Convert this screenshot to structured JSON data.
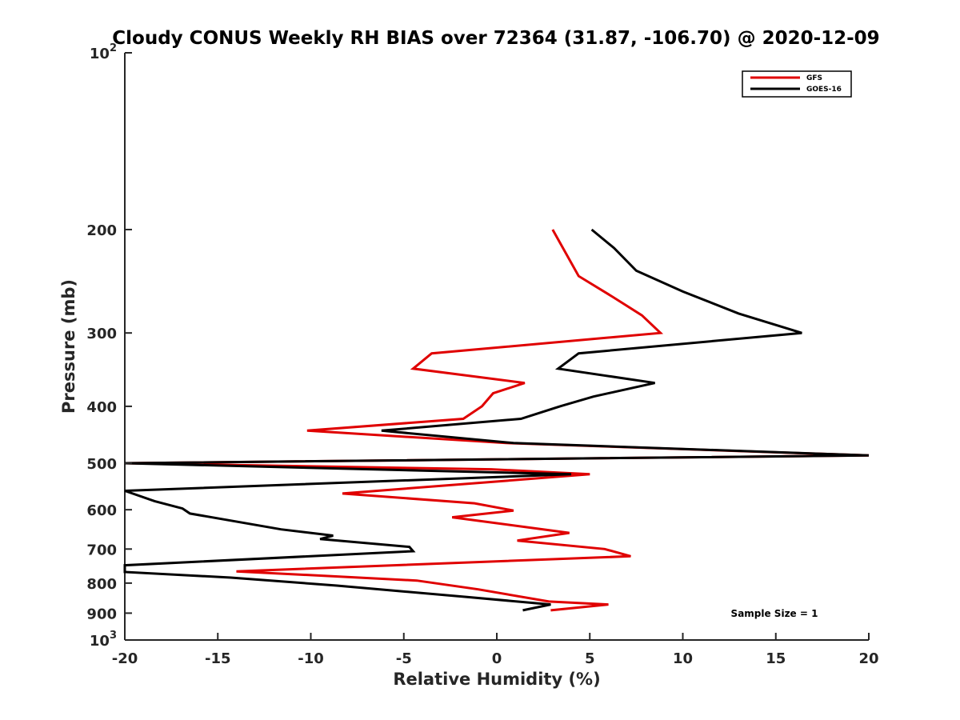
{
  "chart_data": {
    "type": "line",
    "title": "Cloudy CONUS Weekly RH BIAS over 72364 (31.87, -106.70) @ 2020-12-09",
    "xlabel": "Relative Humidity (%)",
    "ylabel": "Pressure (mb)",
    "xlim": [
      -20,
      20
    ],
    "ylim": [
      100,
      1000
    ],
    "y_scale": "log",
    "y_reversed": true,
    "grid": false,
    "legend_position": "top-right",
    "x_ticks": [
      -20,
      -15,
      -10,
      -5,
      0,
      5,
      10,
      15,
      20
    ],
    "x_tick_labels": [
      "-20",
      "-15",
      "-10",
      "-5",
      "0",
      "5",
      "10",
      "15",
      "20"
    ],
    "y_ticks": [
      200,
      300,
      400,
      500,
      600,
      700,
      800,
      900
    ],
    "y_tick_labels": [
      "200",
      "300",
      "400",
      "500",
      "600",
      "700",
      "800",
      "900"
    ],
    "y_end_labels": [
      {
        "value": 100,
        "base": "10",
        "exp": "2"
      },
      {
        "value": 1000,
        "base": "10",
        "exp": "3"
      }
    ],
    "annotation": "Sample Size = 1",
    "series": [
      {
        "name": "GFS",
        "color": "#e00000",
        "points": [
          [
            3.0,
            200
          ],
          [
            4.4,
            240
          ],
          [
            6.2,
            260
          ],
          [
            7.8,
            280
          ],
          [
            8.8,
            300
          ],
          [
            -3.5,
            325
          ],
          [
            -4.5,
            345
          ],
          [
            1.5,
            365
          ],
          [
            -0.2,
            380
          ],
          [
            -0.8,
            400
          ],
          [
            -1.8,
            420
          ],
          [
            -10.2,
            440
          ],
          [
            0.5,
            462
          ],
          [
            20.0,
            485
          ],
          [
            -20.0,
            500
          ],
          [
            -0.3,
            512
          ],
          [
            5.0,
            522
          ],
          [
            -8.3,
            563
          ],
          [
            -1.2,
            585
          ],
          [
            0.9,
            602
          ],
          [
            -2.4,
            618
          ],
          [
            3.9,
            657
          ],
          [
            1.1,
            677
          ],
          [
            5.8,
            700
          ],
          [
            7.2,
            720
          ],
          [
            -14.0,
            764
          ],
          [
            -4.3,
            792
          ],
          [
            -1.0,
            820
          ],
          [
            2.8,
            860
          ],
          [
            6.0,
            870
          ],
          [
            2.9,
            890
          ]
        ]
      },
      {
        "name": "GOES-16",
        "color": "#000000",
        "points": [
          [
            5.1,
            200
          ],
          [
            6.3,
            215
          ],
          [
            7.5,
            235
          ],
          [
            10.0,
            255
          ],
          [
            13.0,
            278
          ],
          [
            16.4,
            300
          ],
          [
            4.4,
            325
          ],
          [
            3.3,
            345
          ],
          [
            8.5,
            365
          ],
          [
            5.2,
            385
          ],
          [
            3.4,
            400
          ],
          [
            1.3,
            420
          ],
          [
            -6.2,
            440
          ],
          [
            0.9,
            462
          ],
          [
            20.0,
            485
          ],
          [
            -20.0,
            500
          ],
          [
            4.0,
            522
          ],
          [
            -20.0,
            557
          ],
          [
            -18.4,
            580
          ],
          [
            -16.9,
            597
          ],
          [
            -16.5,
            609
          ],
          [
            -11.6,
            648
          ],
          [
            -8.8,
            664
          ],
          [
            -9.5,
            673
          ],
          [
            -4.7,
            694
          ],
          [
            -4.5,
            706
          ],
          [
            -20.0,
            746
          ],
          [
            -20.0,
            766
          ],
          [
            -14.3,
            783
          ],
          [
            -8.6,
            808
          ],
          [
            -5.0,
            827
          ],
          [
            -1.6,
            845
          ],
          [
            2.9,
            870
          ],
          [
            1.4,
            890
          ]
        ]
      }
    ]
  }
}
